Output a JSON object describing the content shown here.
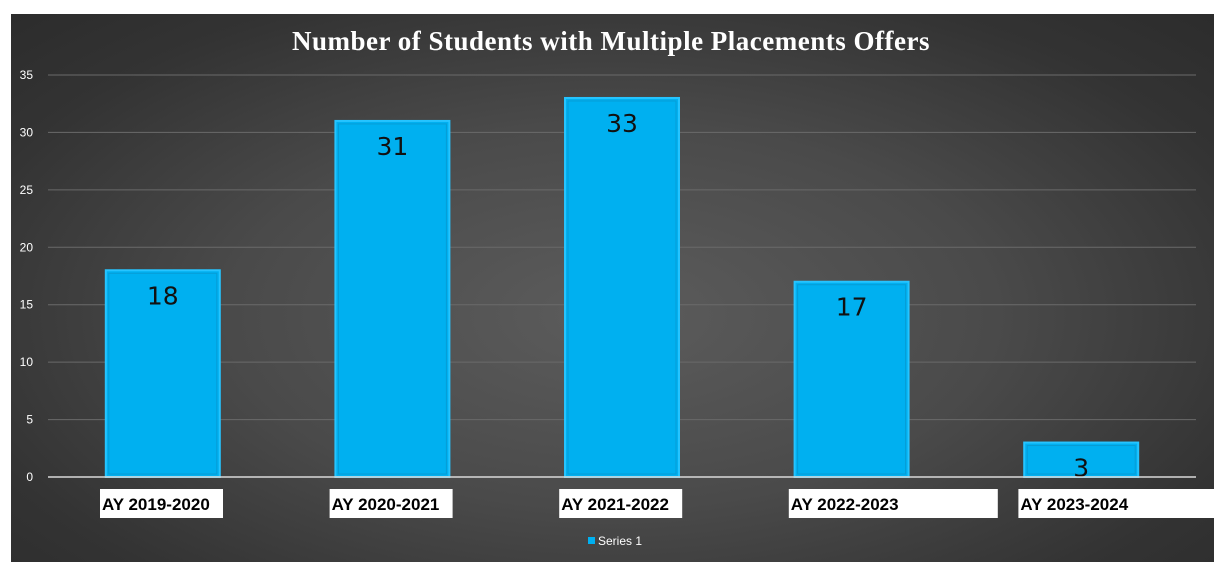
{
  "chart_data": {
    "type": "bar",
    "title": "Number of Students with Multiple Placements Offers",
    "categories": [
      "AY 2019-2020",
      "AY 2020-2021",
      "AY 2021-2022",
      "AY 2022-2023",
      "AY 2023-2024"
    ],
    "series": [
      {
        "name": "Series 1",
        "values": [
          18,
          31,
          33,
          17,
          3
        ]
      }
    ],
    "data_labels": [
      "18",
      "31",
      "33",
      "17",
      "3"
    ],
    "y_ticks": [
      "0",
      "5",
      "10",
      "15",
      "20",
      "25",
      "30",
      "35"
    ],
    "ylim": [
      0,
      35
    ],
    "xlabel": "",
    "ylabel": "",
    "grid": true,
    "legend_position": "bottom",
    "colors": {
      "bar_fill": "#00b0f0",
      "bar_edge": "#26c4ff",
      "background": "#474747",
      "gridline": "#6a6a6a",
      "axis_line": "#d9d9d9",
      "text_light": "#ffffff",
      "data_label": "#111111",
      "category_box": "#ffffff"
    }
  }
}
